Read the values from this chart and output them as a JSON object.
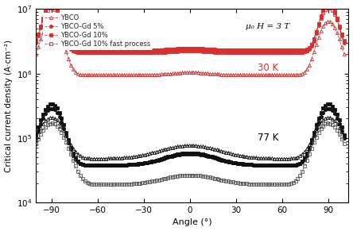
{
  "xlabel": "Angle (°)",
  "ylabel": "Critical current density (A·cm⁻²)",
  "xlim": [
    -100,
    103
  ],
  "ylim_log": [
    4,
    7
  ],
  "annotation_30K": "30 K",
  "annotation_77K": "77 K",
  "annotation_field": "μ₀ H = 3 T",
  "legend_labels": [
    "YBCO",
    "YBCO-Gd 5%",
    "YBCO-Gd 10%",
    "YBCO-Gd 10% fast process"
  ],
  "color_30K": "#d63030",
  "color_77K": "#111111",
  "color_77K_mid": "#555555",
  "xticks": [
    -90,
    -60,
    -30,
    0,
    30,
    60,
    90
  ],
  "background_color": "#ffffff"
}
